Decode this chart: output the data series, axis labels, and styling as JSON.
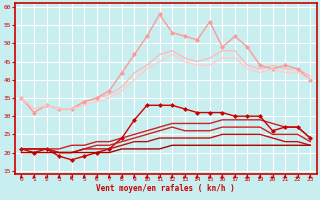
{
  "title": "",
  "xlabel": "Vent moyen/en rafales ( kn/h )",
  "ylabel": "",
  "xlim": [
    -0.5,
    23.5
  ],
  "ylim": [
    14,
    61
  ],
  "yticks": [
    15,
    20,
    25,
    30,
    35,
    40,
    45,
    50,
    55,
    60
  ],
  "xticks": [
    0,
    1,
    2,
    3,
    4,
    5,
    6,
    7,
    8,
    9,
    10,
    11,
    12,
    13,
    14,
    15,
    16,
    17,
    18,
    19,
    20,
    21,
    22,
    23
  ],
  "background_color": "#c8eef0",
  "grid_color": "#ffffff",
  "series": [
    {
      "label": "light_pink_smooth",
      "color": "#ffbbbb",
      "linewidth": 1.0,
      "marker": null,
      "data_x": [
        0,
        1,
        2,
        3,
        4,
        5,
        6,
        7,
        8,
        9,
        10,
        11,
        12,
        13,
        14,
        15,
        16,
        17,
        18,
        19,
        20,
        21,
        22,
        23
      ],
      "data_y": [
        35,
        32,
        33,
        32,
        32,
        34,
        35,
        36,
        38,
        42,
        44,
        47,
        48,
        46,
        45,
        46,
        48,
        48,
        44,
        43,
        44,
        43,
        43,
        41
      ]
    },
    {
      "label": "light_pink_markers",
      "color": "#ff9999",
      "linewidth": 1.0,
      "marker": "D",
      "markersize": 2,
      "data_x": [
        0,
        1,
        2,
        3,
        4,
        5,
        6,
        7,
        8,
        9,
        10,
        11,
        12,
        13,
        14,
        15,
        16,
        17,
        18,
        19,
        20,
        21,
        22,
        23
      ],
      "data_y": [
        35,
        31,
        33,
        32,
        32,
        34,
        35,
        37,
        42,
        47,
        52,
        58,
        53,
        52,
        51,
        56,
        49,
        52,
        49,
        44,
        43,
        44,
        43,
        40
      ]
    },
    {
      "label": "medium_pink_smooth",
      "color": "#ffcccc",
      "linewidth": 1.0,
      "marker": null,
      "data_x": [
        0,
        1,
        2,
        3,
        4,
        5,
        6,
        7,
        8,
        9,
        10,
        11,
        12,
        13,
        14,
        15,
        16,
        17,
        18,
        19,
        20,
        21,
        22,
        23
      ],
      "data_y": [
        35,
        32,
        33,
        32,
        32,
        33,
        34,
        35,
        37,
        40,
        43,
        45,
        47,
        45,
        44,
        44,
        46,
        46,
        43,
        42,
        43,
        42,
        42,
        40
      ]
    },
    {
      "label": "dark_red_smooth_top",
      "color": "#cc2222",
      "linewidth": 1.0,
      "marker": null,
      "data_x": [
        0,
        1,
        2,
        3,
        4,
        5,
        6,
        7,
        8,
        9,
        10,
        11,
        12,
        13,
        14,
        15,
        16,
        17,
        18,
        19,
        20,
        21,
        22,
        23
      ],
      "data_y": [
        21,
        21,
        21,
        21,
        22,
        22,
        23,
        23,
        24,
        25,
        26,
        27,
        28,
        28,
        28,
        28,
        29,
        29,
        29,
        29,
        28,
        27,
        27,
        24
      ]
    },
    {
      "label": "dark_red_markers_top",
      "color": "#cc0000",
      "linewidth": 1.0,
      "marker": "D",
      "markersize": 2,
      "data_x": [
        0,
        1,
        2,
        3,
        4,
        5,
        6,
        7,
        8,
        9,
        10,
        11,
        12,
        13,
        14,
        15,
        16,
        17,
        18,
        19,
        20,
        21,
        22,
        23
      ],
      "data_y": [
        21,
        20,
        21,
        19,
        18,
        19,
        20,
        21,
        24,
        29,
        33,
        33,
        33,
        32,
        31,
        31,
        31,
        30,
        30,
        30,
        26,
        27,
        27,
        24
      ]
    },
    {
      "label": "dark_red_smooth_mid",
      "color": "#cc2222",
      "linewidth": 1.0,
      "marker": null,
      "data_x": [
        0,
        1,
        2,
        3,
        4,
        5,
        6,
        7,
        8,
        9,
        10,
        11,
        12,
        13,
        14,
        15,
        16,
        17,
        18,
        19,
        20,
        21,
        22,
        23
      ],
      "data_y": [
        21,
        21,
        21,
        20,
        20,
        21,
        22,
        22,
        23,
        24,
        25,
        26,
        27,
        26,
        26,
        26,
        27,
        27,
        27,
        27,
        25,
        25,
        25,
        23
      ]
    },
    {
      "label": "dark_red_smooth_low",
      "color": "#bb1111",
      "linewidth": 1.0,
      "marker": null,
      "data_x": [
        0,
        1,
        2,
        3,
        4,
        5,
        6,
        7,
        8,
        9,
        10,
        11,
        12,
        13,
        14,
        15,
        16,
        17,
        18,
        19,
        20,
        21,
        22,
        23
      ],
      "data_y": [
        21,
        21,
        21,
        20,
        20,
        21,
        21,
        21,
        22,
        23,
        23,
        24,
        24,
        24,
        24,
        24,
        25,
        25,
        25,
        25,
        24,
        23,
        23,
        22
      ]
    },
    {
      "label": "dark_red_flat_bottom",
      "color": "#aa0000",
      "linewidth": 1.0,
      "marker": null,
      "data_x": [
        0,
        1,
        2,
        3,
        4,
        5,
        6,
        7,
        8,
        9,
        10,
        11,
        12,
        13,
        14,
        15,
        16,
        17,
        18,
        19,
        20,
        21,
        22,
        23
      ],
      "data_y": [
        20,
        20,
        20,
        20,
        20,
        20,
        20,
        20,
        21,
        21,
        21,
        21,
        22,
        22,
        22,
        22,
        22,
        22,
        22,
        22,
        22,
        22,
        22,
        22
      ]
    }
  ],
  "tick_color": "#cc0000",
  "spine_color": "#cc0000",
  "xlabel_fontsize": 5.5,
  "tick_fontsize": 4.5
}
